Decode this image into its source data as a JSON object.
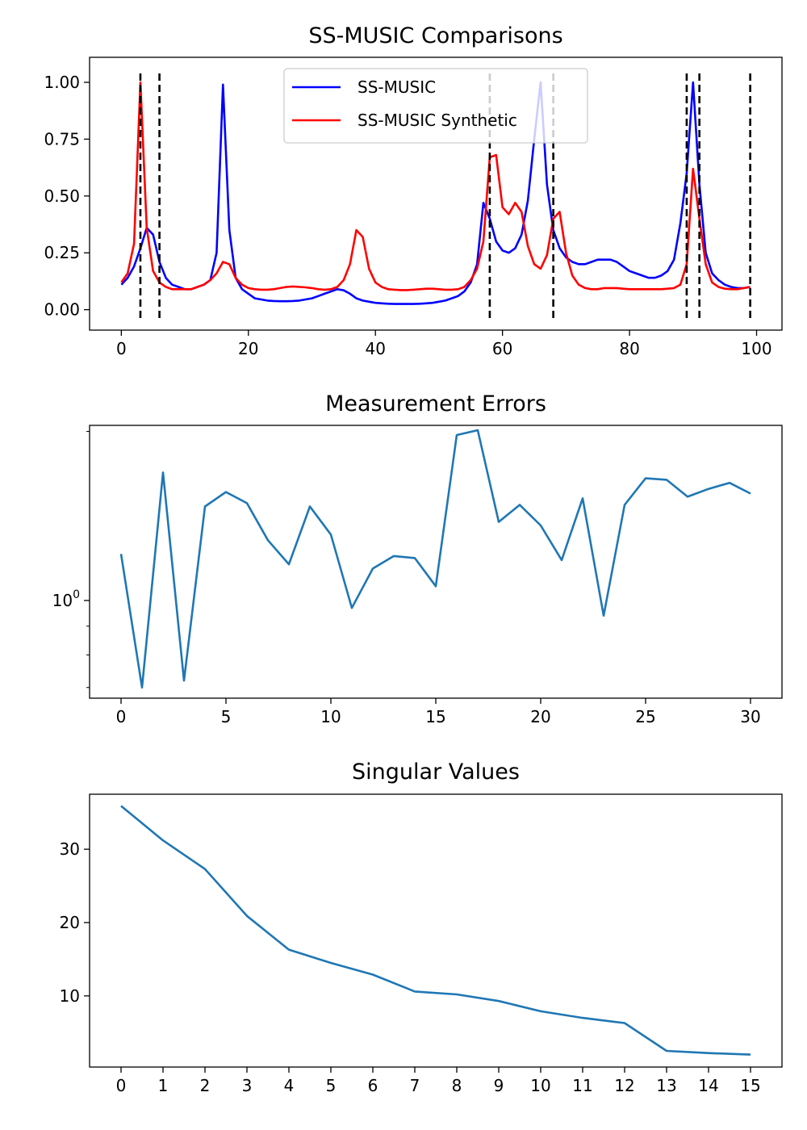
{
  "chart_data": [
    {
      "type": "line",
      "title": "SS-MUSIC Comparisons",
      "xlabel": "",
      "ylabel": "",
      "xlim": [
        -5,
        104
      ],
      "ylim": [
        -0.09,
        1.11
      ],
      "x_ticks": [
        0,
        20,
        40,
        60,
        80,
        100
      ],
      "x_tick_labels": [
        "0",
        "20",
        "40",
        "60",
        "80",
        "100"
      ],
      "y_ticks": [
        0.0,
        0.25,
        0.5,
        0.75,
        1.0
      ],
      "y_tick_labels": [
        "0.00",
        "0.25",
        "0.50",
        "0.75",
        "1.00"
      ],
      "grid": false,
      "legend_position": "top-center",
      "x": [
        0,
        1,
        2,
        3,
        4,
        5,
        6,
        7,
        8,
        9,
        10,
        11,
        12,
        13,
        14,
        15,
        16,
        17,
        18,
        19,
        20,
        21,
        22,
        23,
        24,
        25,
        26,
        27,
        28,
        29,
        30,
        31,
        32,
        33,
        34,
        35,
        36,
        37,
        38,
        39,
        40,
        41,
        42,
        43,
        44,
        45,
        46,
        47,
        48,
        49,
        50,
        51,
        52,
        53,
        54,
        55,
        56,
        57,
        58,
        59,
        60,
        61,
        62,
        63,
        64,
        65,
        66,
        67,
        68,
        69,
        70,
        71,
        72,
        73,
        74,
        75,
        76,
        77,
        78,
        79,
        80,
        81,
        82,
        83,
        84,
        85,
        86,
        87,
        88,
        89,
        90,
        91,
        92,
        93,
        94,
        95,
        96,
        97,
        98,
        99
      ],
      "series": [
        {
          "name": "SS-MUSIC",
          "color": "#0000ff",
          "values": [
            0.11,
            0.14,
            0.19,
            0.27,
            0.36,
            0.33,
            0.21,
            0.14,
            0.11,
            0.1,
            0.09,
            0.09,
            0.1,
            0.11,
            0.13,
            0.25,
            0.99,
            0.35,
            0.14,
            0.09,
            0.07,
            0.05,
            0.045,
            0.04,
            0.038,
            0.037,
            0.037,
            0.038,
            0.04,
            0.045,
            0.05,
            0.06,
            0.07,
            0.08,
            0.09,
            0.085,
            0.07,
            0.05,
            0.04,
            0.035,
            0.03,
            0.028,
            0.026,
            0.025,
            0.025,
            0.025,
            0.025,
            0.026,
            0.028,
            0.03,
            0.035,
            0.04,
            0.05,
            0.06,
            0.08,
            0.12,
            0.2,
            0.47,
            0.4,
            0.3,
            0.26,
            0.25,
            0.27,
            0.33,
            0.48,
            0.75,
            1.0,
            0.55,
            0.35,
            0.27,
            0.23,
            0.21,
            0.2,
            0.2,
            0.21,
            0.22,
            0.22,
            0.22,
            0.21,
            0.19,
            0.17,
            0.16,
            0.15,
            0.14,
            0.14,
            0.15,
            0.17,
            0.22,
            0.38,
            0.6,
            1.0,
            0.55,
            0.25,
            0.16,
            0.13,
            0.11,
            0.1,
            0.095,
            0.095,
            0.1
          ]
        },
        {
          "name": "SS-MUSIC Synthetic",
          "color": "#ff0000",
          "values": [
            0.12,
            0.16,
            0.29,
            1.0,
            0.36,
            0.17,
            0.12,
            0.1,
            0.09,
            0.09,
            0.09,
            0.09,
            0.1,
            0.11,
            0.13,
            0.16,
            0.21,
            0.2,
            0.14,
            0.11,
            0.095,
            0.09,
            0.088,
            0.088,
            0.09,
            0.095,
            0.1,
            0.102,
            0.1,
            0.098,
            0.095,
            0.09,
            0.088,
            0.09,
            0.1,
            0.13,
            0.2,
            0.35,
            0.32,
            0.18,
            0.12,
            0.1,
            0.09,
            0.088,
            0.086,
            0.086,
            0.088,
            0.09,
            0.092,
            0.092,
            0.09,
            0.088,
            0.088,
            0.09,
            0.1,
            0.13,
            0.18,
            0.3,
            0.67,
            0.68,
            0.45,
            0.42,
            0.47,
            0.43,
            0.28,
            0.2,
            0.18,
            0.24,
            0.4,
            0.43,
            0.25,
            0.15,
            0.11,
            0.095,
            0.09,
            0.09,
            0.095,
            0.095,
            0.095,
            0.092,
            0.09,
            0.09,
            0.09,
            0.09,
            0.09,
            0.09,
            0.092,
            0.095,
            0.11,
            0.2,
            0.62,
            0.4,
            0.2,
            0.12,
            0.1,
            0.092,
            0.09,
            0.09,
            0.095,
            0.1
          ]
        }
      ],
      "vlines": {
        "style": "dashed",
        "color": "#000000",
        "x": [
          3,
          6,
          58,
          68,
          89,
          91,
          99
        ]
      }
    },
    {
      "type": "line",
      "title": "Measurement Errors",
      "xlabel": "",
      "ylabel": "",
      "yscale": "log",
      "xlim": [
        -1.5,
        31.5
      ],
      "ylim": [
        0.67,
        2.05
      ],
      "x_ticks": [
        0,
        5,
        10,
        15,
        20,
        25,
        30
      ],
      "x_tick_labels": [
        "0",
        "5",
        "10",
        "15",
        "20",
        "25",
        "30"
      ],
      "y_major_tick_labels": [
        {
          "value": 1.0,
          "base": "10",
          "exponent": "0"
        }
      ],
      "y_minor_ticks": [
        0.7,
        0.8,
        0.9,
        2.0
      ],
      "grid": false,
      "x": [
        0,
        1,
        2,
        3,
        4,
        5,
        6,
        7,
        8,
        9,
        10,
        11,
        12,
        13,
        14,
        15,
        16,
        17,
        18,
        19,
        20,
        21,
        22,
        23,
        24,
        25,
        26,
        27,
        28,
        29,
        30
      ],
      "series": [
        {
          "color": "#1f77b4",
          "values": [
            1.21,
            0.7,
            1.69,
            0.72,
            1.47,
            1.56,
            1.49,
            1.28,
            1.16,
            1.47,
            1.31,
            0.97,
            1.14,
            1.2,
            1.19,
            1.06,
            1.97,
            2.01,
            1.38,
            1.48,
            1.36,
            1.18,
            1.52,
            0.94,
            1.48,
            1.65,
            1.64,
            1.53,
            1.58,
            1.62,
            1.55
          ]
        }
      ]
    },
    {
      "type": "line",
      "title": "Singular Values",
      "xlabel": "",
      "ylabel": "",
      "xlim": [
        -0.75,
        15.75
      ],
      "ylim": [
        0.3,
        37.5
      ],
      "x_ticks": [
        0,
        1,
        2,
        3,
        4,
        5,
        6,
        7,
        8,
        9,
        10,
        11,
        12,
        13,
        14,
        15
      ],
      "x_tick_labels": [
        "0",
        "1",
        "2",
        "3",
        "4",
        "5",
        "6",
        "7",
        "8",
        "9",
        "10",
        "11",
        "12",
        "13",
        "14",
        "15"
      ],
      "y_ticks": [
        10,
        20,
        30
      ],
      "y_tick_labels": [
        "10",
        "20",
        "30"
      ],
      "grid": false,
      "x": [
        0,
        1,
        2,
        3,
        4,
        5,
        6,
        7,
        8,
        9,
        10,
        11,
        12,
        13,
        14,
        15
      ],
      "series": [
        {
          "color": "#1f77b4",
          "values": [
            35.9,
            31.2,
            27.3,
            20.9,
            16.3,
            14.5,
            12.9,
            10.6,
            10.2,
            9.3,
            7.9,
            7.0,
            6.3,
            2.5,
            2.2,
            2.0
          ]
        }
      ]
    }
  ]
}
